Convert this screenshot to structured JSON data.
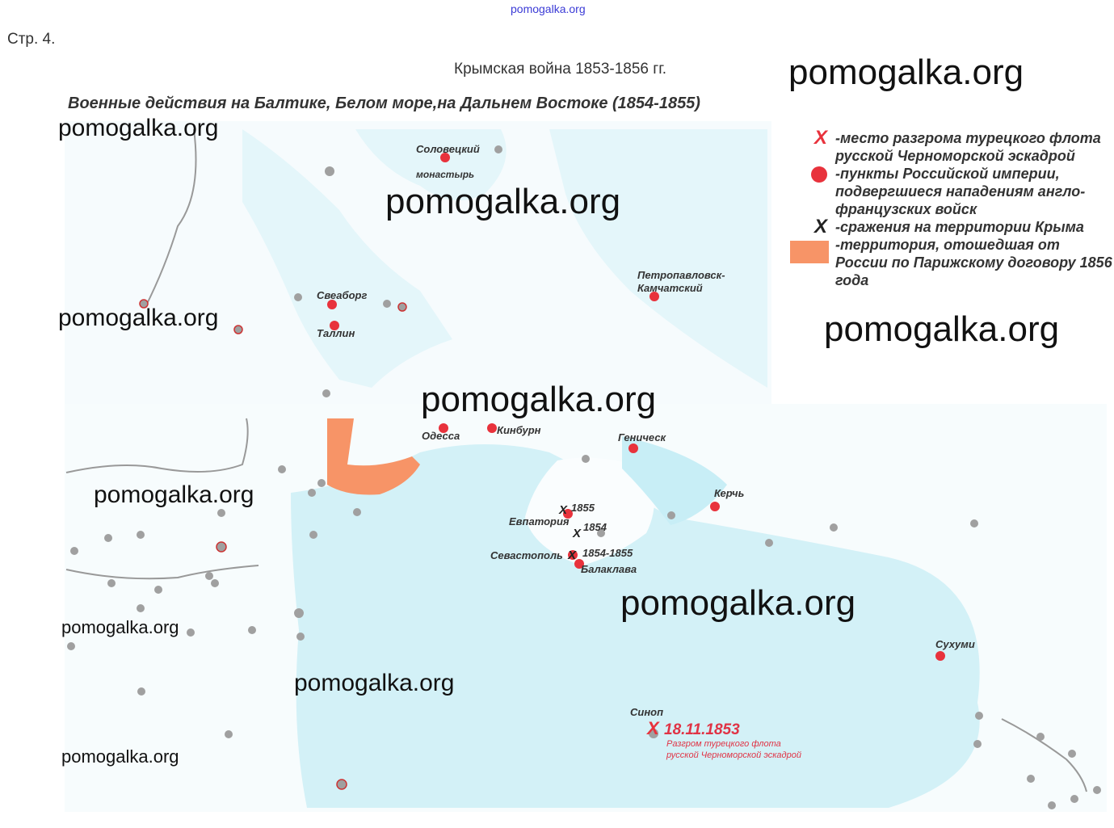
{
  "header": {
    "top_watermark": "pomogalka.org",
    "page_number": "Стр. 4.",
    "title": "Крымская война 1853-1856 гг.",
    "subtitle": "Военные действия на Балтике, Белом море,на Дальнем Востоке (1854-1855)"
  },
  "colors": {
    "defeat_marker": "#e8323c",
    "attacked_point": "#e8323c",
    "battle_marker": "#222222",
    "ceded_territory": "#f79467",
    "sea": "#d9f3f8",
    "city": "#9a9a9a"
  },
  "legend": [
    {
      "icon": "red-x-icon",
      "text": "-место разгрома турецкого флота русской Черноморской эскадрой"
    },
    {
      "icon": "red-dot-icon",
      "text": "-пункты Российской империи, подвергшиеся нападениям англо-французских войск"
    },
    {
      "icon": "black-x-icon",
      "text": "-сражения на территории Крыма"
    },
    {
      "icon": "orange-square-icon",
      "text": "-территория, отошедшая от России по Парижскому договору 1856 года"
    }
  ],
  "cities": {
    "solovki_1": "Соловецкий",
    "solovki_2": "монастырь",
    "sveaborg": "Свеаборг",
    "tallinn": "Таллин",
    "petropavlovsk_1": "Петропавловск-",
    "petropavlovsk_2": "Камчатский",
    "odessa": "Одесса",
    "kinburn": "Кинбурн",
    "genichesk": "Геническ",
    "kerch": "Керчь",
    "evpatoria": "Евпатория",
    "sevastopol": "Севастополь",
    "balaklava": "Балаклава",
    "sukhumi": "Сухуми",
    "sinop": "Синоп"
  },
  "battles": {
    "evpatoria_year": "1855",
    "alma_year": "1854",
    "sevastopol_years": "1854-1855"
  },
  "sinop": {
    "date": "18.11.1853",
    "description": "Разгром турецкого флота русской Черноморской эскадрой"
  },
  "watermarks": [
    "pomogalka.org",
    "pomogalka.org",
    "pomogalka.org",
    "pomogalka.org",
    "pomogalka.org",
    "pomogalka.org",
    "pomogalka.org",
    "pomogalka.org",
    "pomogalka.org",
    "pomogalka.org",
    "pomogalka.org",
    "pomogalka.org"
  ]
}
